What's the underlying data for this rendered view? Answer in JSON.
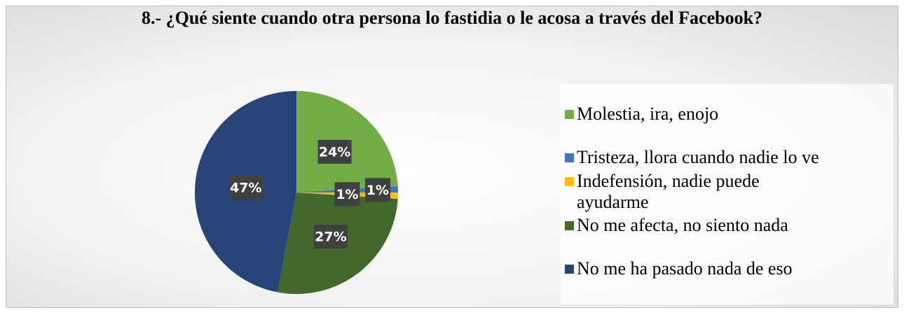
{
  "chart_data": {
    "type": "pie",
    "title": "8.-  ¿Qué siente cuando otra persona lo fastidia o le acosa a través del Facebook?",
    "categories": [
      "Molestia, ira, enojo",
      "Tristeza, llora cuando nadie lo ve",
      "Indefensión, nadie puede ayudarme",
      "No me afecta, no siento nada",
      "No me ha pasado nada de eso"
    ],
    "values": [
      24,
      1,
      1,
      27,
      47
    ],
    "value_labels": [
      "24%",
      "1%",
      "1%",
      "27%",
      "47%"
    ],
    "colors": [
      "#70ad47",
      "#4472c4",
      "#ffc000",
      "#43682b",
      "#264478"
    ],
    "legend": "right"
  }
}
